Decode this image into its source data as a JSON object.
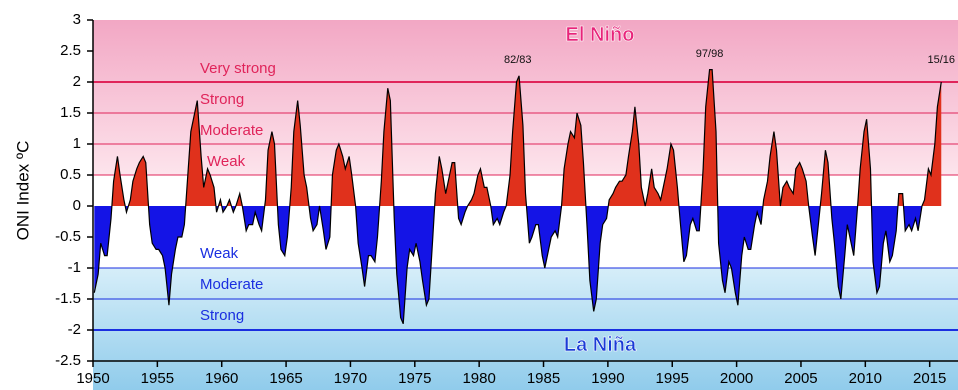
{
  "chart_data": {
    "type": "area",
    "y_label": "ONI Index ºC",
    "xlim": [
      1950,
      2017.2
    ],
    "ylim": [
      -2.5,
      3
    ],
    "xticks": [
      1950,
      1955,
      1960,
      1965,
      1970,
      1975,
      1980,
      1985,
      1990,
      1995,
      2000,
      2005,
      2010,
      2015
    ],
    "yticks": [
      3,
      2.5,
      2,
      1.5,
      1,
      0.5,
      0,
      -0.5,
      -1,
      -1.5,
      -2,
      -2.5
    ],
    "positive_color": "#e0311c",
    "negative_color": "#1414e6",
    "line_color": "#000000",
    "regions": [
      {
        "label": "El Niño",
        "color": "#e8247a",
        "y": 2.75
      },
      {
        "label": "La Niña",
        "color": "#1a3bd6",
        "y": -2.25
      }
    ],
    "thresholds": [
      {
        "value": 2,
        "label": "Very strong",
        "color": "#e0245a",
        "line_width": 2
      },
      {
        "value": 1.5,
        "label": "Strong",
        "color": "#e0245a",
        "line_width": 1
      },
      {
        "value": 1,
        "label": "Moderate",
        "color": "#e0245a",
        "line_width": 1
      },
      {
        "value": 0.5,
        "label": "Weak",
        "color": "#e0245a",
        "line_width": 1
      },
      {
        "value": -1,
        "label": "Weak",
        "color": "#1a2ee0",
        "line_width": 1
      },
      {
        "value": -1.5,
        "label": "Moderate",
        "color": "#1a2ee0",
        "line_width": 1
      },
      {
        "value": -2,
        "label": "Strong",
        "color": "#1a2ee0",
        "line_width": 2
      }
    ],
    "annotations": [
      {
        "text": "82/83",
        "x": 1983,
        "y": 2.35
      },
      {
        "text": "97/98",
        "x": 1997.9,
        "y": 2.45
      },
      {
        "text": "15/16",
        "x": 2015.9,
        "y": 2.35
      }
    ],
    "x": [
      1950.1,
      1950.4,
      1950.6,
      1950.9,
      1951.1,
      1951.4,
      1951.6,
      1951.9,
      1952.1,
      1952.4,
      1952.6,
      1952.9,
      1953.1,
      1953.4,
      1953.6,
      1953.9,
      1954.1,
      1954.4,
      1954.6,
      1954.9,
      1955.1,
      1955.4,
      1955.6,
      1955.9,
      1956.1,
      1956.4,
      1956.6,
      1956.9,
      1957.1,
      1957.4,
      1957.6,
      1957.9,
      1958.1,
      1958.4,
      1958.6,
      1958.9,
      1959.1,
      1959.4,
      1959.6,
      1959.9,
      1960.1,
      1960.4,
      1960.6,
      1960.9,
      1961.1,
      1961.4,
      1961.6,
      1961.9,
      1962.1,
      1962.4,
      1962.6,
      1962.9,
      1963.1,
      1963.4,
      1963.6,
      1963.9,
      1964.1,
      1964.4,
      1964.6,
      1964.9,
      1965.1,
      1965.4,
      1965.6,
      1965.9,
      1966.1,
      1966.4,
      1966.6,
      1966.9,
      1967.1,
      1967.4,
      1967.6,
      1967.9,
      1968.1,
      1968.4,
      1968.6,
      1968.9,
      1969.1,
      1969.4,
      1969.6,
      1969.9,
      1970.1,
      1970.4,
      1970.6,
      1970.9,
      1971.1,
      1971.4,
      1971.6,
      1971.9,
      1972.1,
      1972.4,
      1972.6,
      1972.9,
      1973.1,
      1973.4,
      1973.6,
      1973.9,
      1974.1,
      1974.4,
      1974.6,
      1974.9,
      1975.1,
      1975.4,
      1975.6,
      1975.9,
      1976.1,
      1976.4,
      1976.6,
      1976.9,
      1977.1,
      1977.4,
      1977.6,
      1977.9,
      1978.1,
      1978.4,
      1978.6,
      1978.9,
      1979.1,
      1979.4,
      1979.6,
      1979.9,
      1980.1,
      1980.4,
      1980.6,
      1980.9,
      1981.1,
      1981.4,
      1981.6,
      1981.9,
      1982.1,
      1982.4,
      1982.6,
      1982.9,
      1983.1,
      1983.4,
      1983.6,
      1983.9,
      1984.1,
      1984.4,
      1984.6,
      1984.9,
      1985.1,
      1985.4,
      1985.6,
      1985.9,
      1986.1,
      1986.4,
      1986.6,
      1986.9,
      1987.1,
      1987.4,
      1987.6,
      1987.9,
      1988.1,
      1988.4,
      1988.6,
      1988.9,
      1989.1,
      1989.4,
      1989.6,
      1989.9,
      1990.1,
      1990.4,
      1990.6,
      1990.9,
      1991.1,
      1991.4,
      1991.6,
      1991.9,
      1992.1,
      1992.4,
      1992.6,
      1992.9,
      1993.1,
      1993.4,
      1993.6,
      1993.9,
      1994.1,
      1994.4,
      1994.6,
      1994.9,
      1995.1,
      1995.4,
      1995.6,
      1995.9,
      1996.1,
      1996.4,
      1996.6,
      1996.9,
      1997.1,
      1997.4,
      1997.6,
      1997.9,
      1998.1,
      1998.4,
      1998.6,
      1998.9,
      1999.1,
      1999.4,
      1999.6,
      1999.9,
      2000.1,
      2000.4,
      2000.6,
      2000.9,
      2001.1,
      2001.4,
      2001.6,
      2001.9,
      2002.1,
      2002.4,
      2002.6,
      2002.9,
      2003.1,
      2003.4,
      2003.6,
      2003.9,
      2004.1,
      2004.4,
      2004.6,
      2004.9,
      2005.1,
      2005.4,
      2005.6,
      2005.9,
      2006.1,
      2006.4,
      2006.6,
      2006.9,
      2007.1,
      2007.4,
      2007.6,
      2007.9,
      2008.1,
      2008.4,
      2008.6,
      2008.9,
      2009.1,
      2009.4,
      2009.6,
      2009.9,
      2010.1,
      2010.4,
      2010.6,
      2010.9,
      2011.1,
      2011.4,
      2011.6,
      2011.9,
      2012.1,
      2012.4,
      2012.6,
      2012.9,
      2013.1,
      2013.4,
      2013.6,
      2013.9,
      2014.1,
      2014.4,
      2014.6,
      2014.9,
      2015.1,
      2015.4,
      2015.6,
      2015.9
    ],
    "values": [
      -1.4,
      -1.1,
      -0.6,
      -0.8,
      -0.8,
      -0.2,
      0.4,
      0.8,
      0.5,
      0.1,
      -0.1,
      0.1,
      0.4,
      0.6,
      0.7,
      0.8,
      0.7,
      -0.3,
      -0.6,
      -0.7,
      -0.7,
      -0.8,
      -1.0,
      -1.6,
      -1.1,
      -0.7,
      -0.5,
      -0.5,
      -0.3,
      0.6,
      1.2,
      1.5,
      1.7,
      0.8,
      0.3,
      0.6,
      0.5,
      0.3,
      -0.1,
      0.1,
      -0.1,
      0.0,
      0.1,
      -0.1,
      0.0,
      0.2,
      0.0,
      -0.4,
      -0.3,
      -0.3,
      -0.1,
      -0.3,
      -0.4,
      0.1,
      0.9,
      1.2,
      1.0,
      -0.3,
      -0.7,
      -0.8,
      -0.5,
      0.3,
      1.2,
      1.7,
      1.3,
      0.5,
      0.3,
      -0.2,
      -0.4,
      -0.3,
      0.0,
      -0.4,
      -0.7,
      -0.5,
      0.5,
      0.9,
      1.0,
      0.8,
      0.6,
      0.8,
      0.5,
      0.0,
      -0.6,
      -1.0,
      -1.3,
      -0.8,
      -0.8,
      -0.9,
      -0.5,
      0.4,
      1.2,
      1.9,
      1.7,
      -0.2,
      -1.1,
      -1.8,
      -1.9,
      -1.0,
      -0.7,
      -0.8,
      -0.6,
      -0.9,
      -1.2,
      -1.6,
      -1.5,
      -0.5,
      0.2,
      0.8,
      0.6,
      0.2,
      0.4,
      0.7,
      0.7,
      -0.2,
      -0.3,
      -0.1,
      0.0,
      0.1,
      0.2,
      0.5,
      0.6,
      0.3,
      0.3,
      0.0,
      -0.3,
      -0.2,
      -0.3,
      -0.1,
      0.0,
      0.5,
      1.2,
      2.0,
      2.1,
      1.3,
      0.2,
      -0.6,
      -0.5,
      -0.3,
      -0.3,
      -0.8,
      -1.0,
      -0.7,
      -0.5,
      -0.4,
      -0.5,
      0.0,
      0.6,
      1.0,
      1.2,
      1.1,
      1.5,
      1.3,
      0.7,
      -0.4,
      -1.2,
      -1.7,
      -1.5,
      -0.6,
      -0.3,
      -0.2,
      0.1,
      0.2,
      0.3,
      0.4,
      0.4,
      0.5,
      0.8,
      1.2,
      1.6,
      1.0,
      0.3,
      0.0,
      0.2,
      0.6,
      0.3,
      0.2,
      0.1,
      0.4,
      0.6,
      1.0,
      0.9,
      0.3,
      -0.2,
      -0.9,
      -0.8,
      -0.3,
      -0.2,
      -0.4,
      -0.4,
      0.6,
      1.6,
      2.2,
      2.2,
      1.2,
      -0.6,
      -1.2,
      -1.4,
      -0.9,
      -1.0,
      -1.4,
      -1.6,
      -0.8,
      -0.5,
      -0.7,
      -0.7,
      -0.3,
      -0.1,
      -0.3,
      0.1,
      0.4,
      0.8,
      1.2,
      0.9,
      0.0,
      0.3,
      0.4,
      0.3,
      0.2,
      0.6,
      0.7,
      0.6,
      0.4,
      0.0,
      -0.5,
      -0.8,
      -0.2,
      0.2,
      0.9,
      0.7,
      -0.2,
      -0.6,
      -1.3,
      -1.5,
      -0.8,
      -0.3,
      -0.6,
      -0.8,
      0.0,
      0.6,
      1.2,
      1.4,
      0.6,
      -0.9,
      -1.4,
      -1.3,
      -0.6,
      -0.4,
      -0.9,
      -0.8,
      -0.4,
      0.2,
      0.2,
      -0.4,
      -0.3,
      -0.4,
      -0.2,
      -0.4,
      0.0,
      0.1,
      0.6,
      0.5,
      1.0,
      1.6,
      2.0
    ]
  }
}
